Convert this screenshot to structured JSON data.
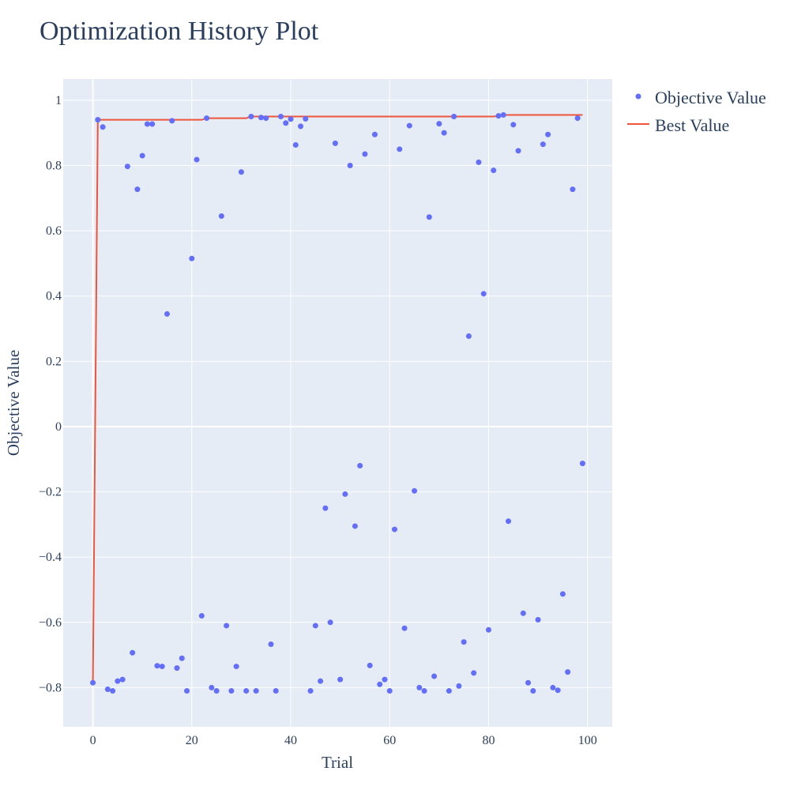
{
  "chart_data": {
    "type": "scatter",
    "title": "Optimization History Plot",
    "xlabel": "Trial",
    "ylabel": "Objective Value",
    "xlim": [
      -6,
      105
    ],
    "ylim": [
      -0.92,
      1.065
    ],
    "x_ticks": [
      0,
      20,
      40,
      60,
      80,
      100
    ],
    "y_ticks": [
      1,
      0.8,
      0.6,
      0.4,
      0.2,
      0,
      -0.2,
      -0.4,
      -0.6,
      -0.8
    ],
    "y_tick_labels": [
      "1",
      "0.8",
      "0.6",
      "0.4",
      "0.2",
      "0",
      "−0.2",
      "−0.4",
      "−0.6",
      "−0.8"
    ],
    "grid": true,
    "background": "#e5ecf6",
    "legend_position": "top-right",
    "series": [
      {
        "name": "Objective Value",
        "kind": "markers",
        "color": "#636efa",
        "points": [
          [
            0,
            -0.785
          ],
          [
            1,
            0.94
          ],
          [
            2,
            0.918
          ],
          [
            3,
            -0.805
          ],
          [
            4,
            -0.81
          ],
          [
            5,
            -0.78
          ],
          [
            6,
            -0.775
          ],
          [
            7,
            0.797
          ],
          [
            8,
            -0.693
          ],
          [
            9,
            0.727
          ],
          [
            10,
            0.83
          ],
          [
            11,
            0.927
          ],
          [
            12,
            0.927
          ],
          [
            13,
            -0.733
          ],
          [
            14,
            -0.735
          ],
          [
            15,
            0.345
          ],
          [
            16,
            0.937
          ],
          [
            17,
            -0.74
          ],
          [
            18,
            -0.71
          ],
          [
            19,
            -0.81
          ],
          [
            20,
            0.515
          ],
          [
            21,
            0.818
          ],
          [
            22,
            -0.58
          ],
          [
            23,
            0.945
          ],
          [
            24,
            -0.8
          ],
          [
            25,
            -0.81
          ],
          [
            26,
            0.645
          ],
          [
            27,
            -0.61
          ],
          [
            28,
            -0.81
          ],
          [
            29,
            -0.735
          ],
          [
            30,
            0.78
          ],
          [
            31,
            -0.81
          ],
          [
            32,
            0.95
          ],
          [
            33,
            -0.81
          ],
          [
            34,
            0.947
          ],
          [
            35,
            0.945
          ],
          [
            36,
            -0.667
          ],
          [
            37,
            -0.81
          ],
          [
            38,
            0.95
          ],
          [
            39,
            0.93
          ],
          [
            40,
            0.942
          ],
          [
            41,
            0.863
          ],
          [
            42,
            0.92
          ],
          [
            43,
            0.943
          ],
          [
            44,
            -0.81
          ],
          [
            45,
            -0.61
          ],
          [
            46,
            -0.78
          ],
          [
            47,
            -0.25
          ],
          [
            48,
            -0.6
          ],
          [
            49,
            0.868
          ],
          [
            50,
            -0.775
          ],
          [
            51,
            -0.207
          ],
          [
            52,
            0.8
          ],
          [
            53,
            -0.305
          ],
          [
            54,
            -0.12
          ],
          [
            55,
            0.835
          ],
          [
            56,
            -0.732
          ],
          [
            57,
            0.895
          ],
          [
            58,
            -0.79
          ],
          [
            59,
            -0.775
          ],
          [
            60,
            -0.81
          ],
          [
            61,
            -0.315
          ],
          [
            62,
            0.85
          ],
          [
            63,
            -0.618
          ],
          [
            64,
            0.922
          ],
          [
            65,
            -0.197
          ],
          [
            66,
            -0.8
          ],
          [
            67,
            -0.81
          ],
          [
            68,
            0.642
          ],
          [
            69,
            -0.765
          ],
          [
            70,
            0.928
          ],
          [
            71,
            0.9
          ],
          [
            72,
            -0.81
          ],
          [
            73,
            0.95
          ],
          [
            74,
            -0.795
          ],
          [
            75,
            -0.66
          ],
          [
            76,
            0.277
          ],
          [
            77,
            -0.755
          ],
          [
            78,
            0.81
          ],
          [
            79,
            0.407
          ],
          [
            80,
            -0.623
          ],
          [
            81,
            0.785
          ],
          [
            82,
            0.952
          ],
          [
            83,
            0.955
          ],
          [
            84,
            -0.29
          ],
          [
            85,
            0.925
          ],
          [
            86,
            0.845
          ],
          [
            87,
            -0.572
          ],
          [
            88,
            -0.785
          ],
          [
            89,
            -0.81
          ],
          [
            90,
            -0.592
          ],
          [
            91,
            0.865
          ],
          [
            92,
            0.895
          ],
          [
            93,
            -0.8
          ],
          [
            94,
            -0.808
          ],
          [
            95,
            -0.513
          ],
          [
            96,
            -0.752
          ],
          [
            97,
            0.727
          ],
          [
            98,
            0.945
          ],
          [
            99,
            -0.113
          ]
        ]
      },
      {
        "name": "Best Value",
        "kind": "line",
        "color": "#ef553b",
        "points": [
          [
            0,
            -0.785
          ],
          [
            1,
            0.94
          ],
          [
            22,
            0.94
          ],
          [
            23,
            0.945
          ],
          [
            31,
            0.945
          ],
          [
            32,
            0.95
          ],
          [
            81,
            0.95
          ],
          [
            82,
            0.952
          ],
          [
            83,
            0.955
          ],
          [
            99,
            0.955
          ]
        ]
      }
    ]
  }
}
